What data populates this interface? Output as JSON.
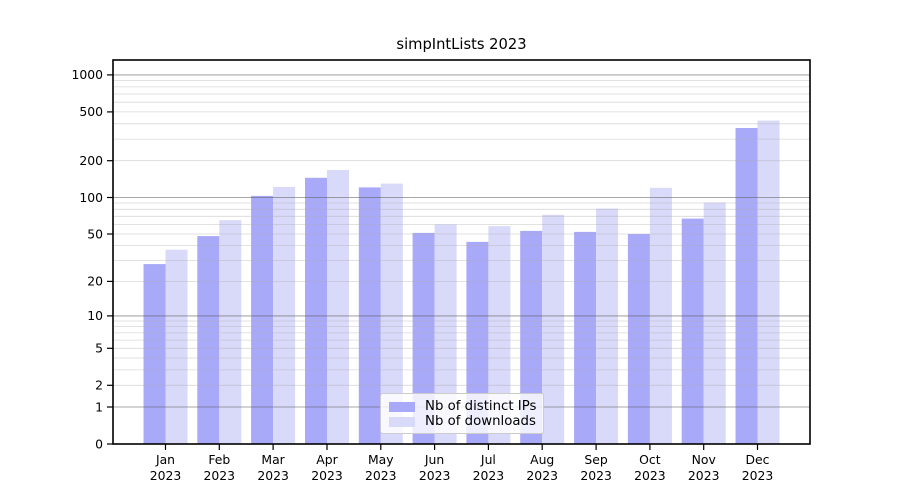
{
  "chart_data": {
    "type": "bar",
    "title": "simpIntLists 2023",
    "categories": [
      "Jan 2023",
      "Feb 2023",
      "Mar 2023",
      "Apr 2023",
      "May 2023",
      "Jun 2023",
      "Jul 2023",
      "Aug 2023",
      "Sep 2023",
      "Oct 2023",
      "Nov 2023",
      "Dec 2023"
    ],
    "series": [
      {
        "name": "Nb of distinct IPs",
        "color": "#a9a9fa",
        "values": [
          28,
          48,
          103,
          145,
          121,
          51,
          43,
          53,
          52,
          50,
          67,
          370
        ]
      },
      {
        "name": "Nb of downloads",
        "color": "#d9d9f9",
        "values": [
          37,
          65,
          122,
          168,
          130,
          60,
          58,
          72,
          81,
          120,
          91,
          425
        ]
      }
    ],
    "yscale": "log10(1+x)",
    "yticks": [
      0,
      1,
      2,
      5,
      10,
      20,
      50,
      100,
      200,
      500,
      1000
    ],
    "ylim": [
      0,
      1300
    ],
    "grid": true,
    "legend_position": "inside-bottom-center",
    "colors": {
      "axis": "#000000",
      "major_grid": "#b0b0b0",
      "minor_grid": "#e9e9e9",
      "text": "#000000"
    }
  }
}
